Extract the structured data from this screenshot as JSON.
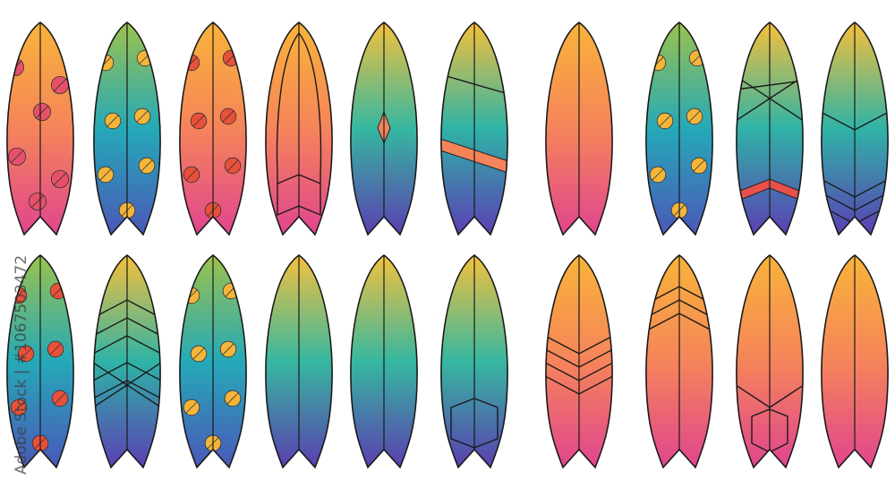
{
  "watermark": "Adobe Stock | #1067503472",
  "palettes": {
    "sunset": [
      "#f9b43a",
      "#f5845a",
      "#e0458f"
    ],
    "ocean": [
      "#f4c13c",
      "#36b7a0",
      "#5a3fb0"
    ],
    "tropic": [
      "#9cc24d",
      "#25a9b8",
      "#4b58b8"
    ],
    "rainbow": [
      "#f6c03b",
      "#2fb3a6",
      "#5b3fb4"
    ]
  },
  "boards": [
    {
      "palette": "sunset",
      "decor": "flowers"
    },
    {
      "palette": "tropic",
      "decor": "leaves"
    },
    {
      "palette": "sunset",
      "decor": "leaves-red"
    },
    {
      "palette": "sunset",
      "decor": "inner-outline"
    },
    {
      "palette": "ocean",
      "decor": "diamond"
    },
    {
      "palette": "rainbow",
      "decor": "band"
    },
    {
      "palette": "sunset",
      "decor": "none"
    },
    {
      "palette": "tropic",
      "decor": "leaves"
    },
    {
      "palette": "rainbow",
      "decor": "cross-chevron"
    },
    {
      "palette": "rainbow",
      "decor": "chevron-bottom"
    },
    {
      "palette": "tropic",
      "decor": "leaves-red"
    },
    {
      "palette": "rainbow",
      "decor": "chevron-stack"
    },
    {
      "palette": "tropic",
      "decor": "leaves"
    },
    {
      "palette": "ocean",
      "decor": "none"
    },
    {
      "palette": "ocean",
      "decor": "none"
    },
    {
      "palette": "ocean",
      "decor": "pad"
    },
    {
      "palette": "sunset",
      "decor": "chevron-mid"
    },
    {
      "palette": "sunset",
      "decor": "chevron-top"
    },
    {
      "palette": "sunset",
      "decor": "pentagon"
    },
    {
      "palette": "sunset",
      "decor": "none"
    }
  ]
}
